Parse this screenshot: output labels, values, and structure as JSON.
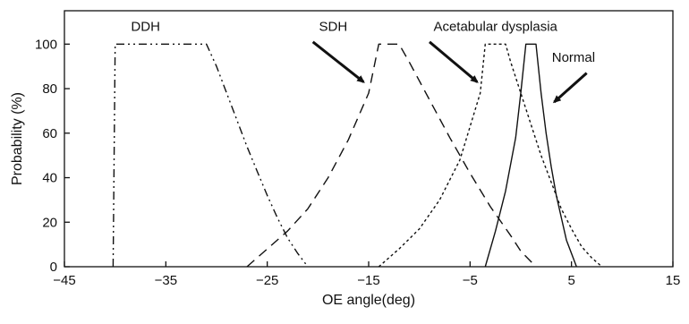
{
  "chart_data": {
    "type": "line",
    "title": "",
    "xlabel": "OE angle(deg)",
    "ylabel": "Probability (%)",
    "xlim": [
      -45,
      15
    ],
    "ylim": [
      0,
      115
    ],
    "x_ticks": [
      -45,
      -35,
      -25,
      -15,
      -5,
      5,
      15
    ],
    "x_tick_labels": [
      "−45",
      "−35",
      "−25",
      "−15",
      "−5",
      "5",
      "15"
    ],
    "y_ticks": [
      0,
      20,
      40,
      60,
      80,
      100
    ],
    "y_tick_labels": [
      "0",
      "20",
      "40",
      "60",
      "80",
      "100"
    ],
    "grid": false,
    "legend": "none",
    "series": [
      {
        "name": "DDH",
        "style": "dash-dot-dot",
        "color": "#111111",
        "x": [
          -40.2,
          -40,
          -31,
          -30,
          -29,
          -28,
          -27,
          -26,
          -25,
          -24,
          -23,
          -22,
          -21
        ],
        "y": [
          0,
          100,
          100,
          90,
          78,
          66,
          54,
          43,
          32,
          22,
          13,
          6,
          0
        ]
      },
      {
        "name": "SDH",
        "style": "dash",
        "color": "#111111",
        "x": [
          -27,
          -25,
          -23,
          -21,
          -19,
          -17,
          -15,
          -14,
          -12,
          -11,
          -9,
          -7,
          -5,
          -3,
          -1,
          0,
          1.5
        ],
        "y": [
          0,
          8,
          16,
          26,
          40,
          57,
          78,
          100,
          100,
          92,
          75,
          58,
          42,
          27,
          14,
          7,
          0
        ]
      },
      {
        "name": "Acetabular dysplasia",
        "style": "dot",
        "color": "#111111",
        "x": [
          -14,
          -12,
          -10,
          -8,
          -6,
          -4,
          -3.5,
          -1.5,
          -1,
          0,
          1,
          2,
          3,
          4,
          5,
          6,
          7,
          8
        ],
        "y": [
          0,
          8,
          17,
          30,
          48,
          78,
          100,
          100,
          92,
          78,
          64,
          50,
          38,
          26,
          17,
          9,
          4,
          0
        ]
      },
      {
        "name": "Normal",
        "style": "solid",
        "color": "#111111",
        "x": [
          -3.5,
          -2.5,
          -1.5,
          -0.5,
          0,
          0.5,
          1.5,
          2,
          2.5,
          3,
          3.5,
          4.5,
          5.5
        ],
        "y": [
          0,
          16,
          34,
          58,
          78,
          100,
          100,
          78,
          60,
          45,
          32,
          12,
          0
        ]
      }
    ],
    "annotations": [
      {
        "text": "DDH",
        "x": -37,
        "y": 106
      },
      {
        "text": "SDH",
        "x": -18.5,
        "y": 106
      },
      {
        "text": "Acetabular dysplasia",
        "x": -2.5,
        "y": 106
      },
      {
        "text": "Normal",
        "x": 5.2,
        "y": 92
      }
    ],
    "arrows": [
      {
        "from": [
          -20.5,
          101
        ],
        "to": [
          -15.5,
          83
        ]
      },
      {
        "from": [
          -9,
          101
        ],
        "to": [
          -4.3,
          83
        ]
      },
      {
        "from": [
          6.5,
          87
        ],
        "to": [
          3.3,
          74
        ]
      }
    ]
  }
}
